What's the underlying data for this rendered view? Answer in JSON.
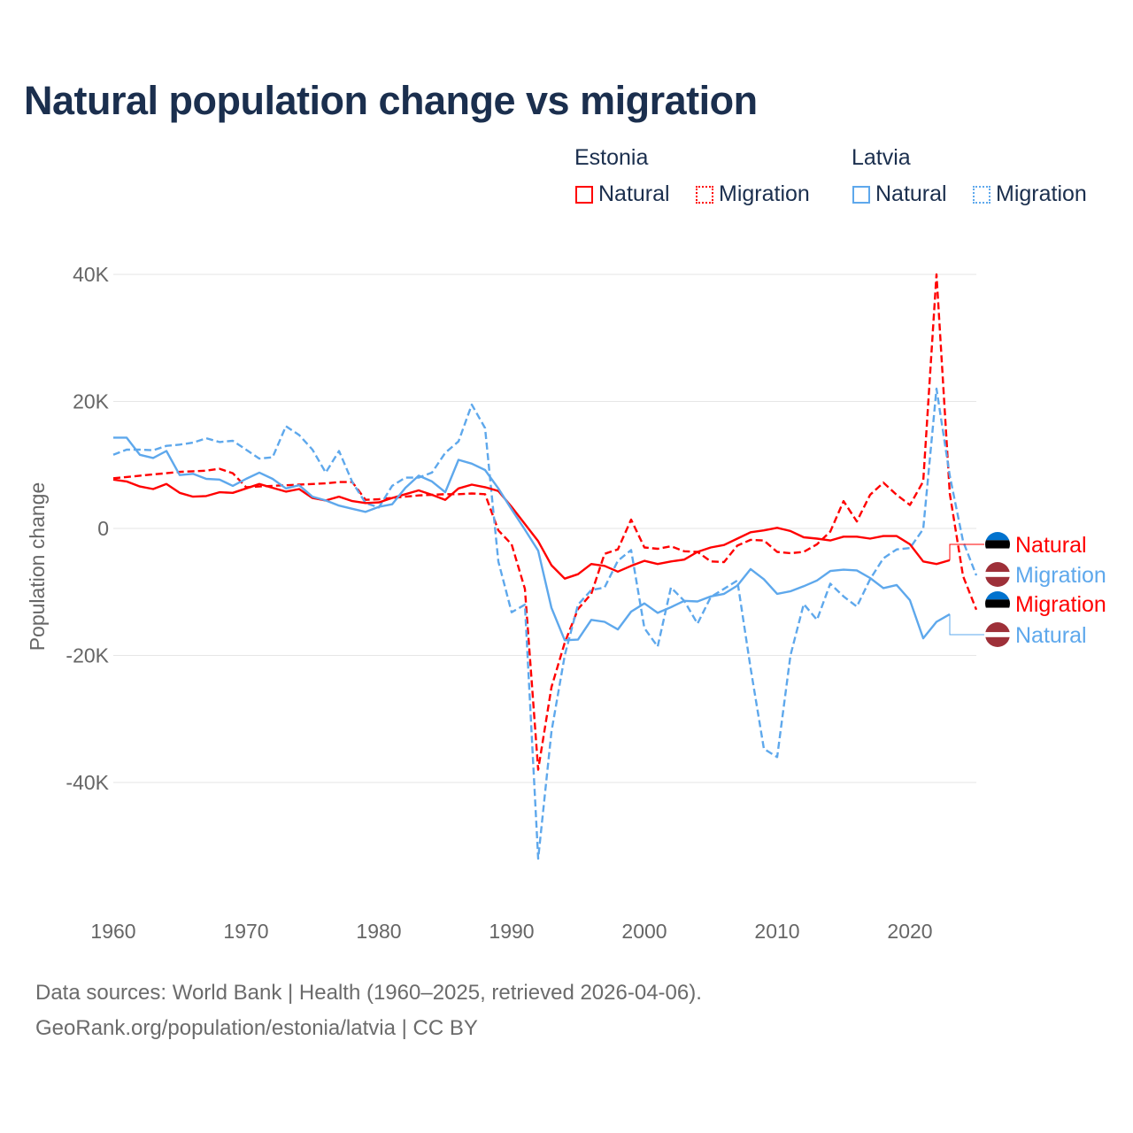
{
  "title": "Natural population change vs migration",
  "legend": {
    "groups": [
      {
        "label": "Estonia",
        "items": [
          {
            "label": "Natural",
            "style": "solid",
            "color": "#ff0000"
          },
          {
            "label": "Migration",
            "style": "dotted",
            "color": "#ff0000"
          }
        ]
      },
      {
        "label": "Latvia",
        "items": [
          {
            "label": "Natural",
            "style": "solid",
            "color": "#5ea8ec"
          },
          {
            "label": "Migration",
            "style": "dotted",
            "color": "#5ea8ec"
          }
        ]
      }
    ]
  },
  "footer": {
    "line1": "Data sources: World Bank | Health (1960–2025, retrieved 2026-04-06).",
    "line2": "GeoRank.org/population/estonia/latvia | CC BY"
  },
  "chart_data": {
    "type": "line",
    "title": "Natural population change vs migration",
    "xlabel": "",
    "ylabel": "Population change",
    "xlim": [
      1960,
      2025
    ],
    "ylim": [
      -55000,
      42000
    ],
    "x_ticks": [
      1960,
      1970,
      1980,
      1990,
      2000,
      2010,
      2020
    ],
    "x_tick_labels": [
      "1960",
      "1970",
      "1980",
      "1990",
      "2000",
      "2010",
      "2020"
    ],
    "y_ticks": [
      40000,
      20000,
      0,
      -20000,
      -40000
    ],
    "y_tick_labels": [
      "40K",
      "20K",
      "0",
      "-20K",
      "-40K"
    ],
    "grid": true,
    "legend_position": "top-right",
    "series": [
      {
        "name": "Estonia Natural",
        "end_label": "Natural",
        "country": "Estonia",
        "color": "#ff0000",
        "dash": false,
        "start": 1960,
        "values": [
          7700,
          7400,
          6600,
          6200,
          7000,
          5600,
          5000,
          5100,
          5700,
          5600,
          6300,
          7000,
          6400,
          5800,
          6200,
          4800,
          4400,
          5000,
          4300,
          4000,
          4100,
          4800,
          5400,
          6000,
          5300,
          4500,
          6300,
          6900,
          6500,
          5900,
          3400,
          700,
          -2000,
          -5800,
          -7900,
          -7200,
          -5600,
          -5900,
          -6800,
          -5900,
          -5100,
          -5600,
          -5200,
          -4900,
          -3700,
          -3000,
          -2600,
          -1600,
          -600,
          -300,
          100,
          -400,
          -1400,
          -1600,
          -1900,
          -1300,
          -1300,
          -1600,
          -1200,
          -1200,
          -2500,
          -5200,
          -5600,
          -5000
        ]
      },
      {
        "name": "Latvia Migration",
        "end_label": "Migration",
        "country": "Latvia",
        "color": "#5ea8ec",
        "dash": true,
        "start": 1960,
        "values": [
          11600,
          12400,
          12400,
          12300,
          13000,
          13200,
          13500,
          14200,
          13600,
          13800,
          12400,
          11000,
          11200,
          16100,
          14700,
          12400,
          8800,
          12200,
          7300,
          4000,
          3300,
          6700,
          8000,
          8000,
          8800,
          11900,
          13700,
          19500,
          15800,
          -5200,
          -13200,
          -12000,
          -52000,
          -32000,
          -20000,
          -12000,
          -9700,
          -9300,
          -5100,
          -3400,
          -15700,
          -18600,
          -9300,
          -11400,
          -15000,
          -10800,
          -9500,
          -8200,
          -22000,
          -34700,
          -36000,
          -20000,
          -11900,
          -14400,
          -8700,
          -10700,
          -12300,
          -8000,
          -4700,
          -3300,
          -3100,
          -100,
          22000,
          8300,
          -2000,
          -7400
        ]
      },
      {
        "name": "Estonia Migration",
        "end_label": "Migration",
        "country": "Estonia",
        "color": "#ff0000",
        "dash": true,
        "start": 1960,
        "values": [
          7900,
          8100,
          8300,
          8500,
          8700,
          8900,
          9000,
          9100,
          9400,
          8700,
          6500,
          6600,
          6700,
          6800,
          6900,
          7000,
          7100,
          7300,
          7300,
          4500,
          4600,
          4800,
          5000,
          5200,
          5300,
          5400,
          5400,
          5500,
          5400,
          -300,
          -2500,
          -9500,
          -38000,
          -25000,
          -18000,
          -12700,
          -10300,
          -4000,
          -3300,
          1400,
          -3000,
          -3200,
          -2800,
          -3600,
          -3700,
          -5200,
          -5300,
          -2700,
          -1800,
          -1900,
          -3700,
          -3900,
          -3700,
          -2500,
          -500,
          4300,
          1100,
          5300,
          7200,
          5300,
          3700,
          7400,
          40000,
          5500,
          -7500,
          -12800
        ]
      },
      {
        "name": "Latvia Natural",
        "end_label": "Natural",
        "country": "Latvia",
        "color": "#5ea8ec",
        "dash": false,
        "start": 1960,
        "values": [
          14300,
          14300,
          11600,
          11100,
          12200,
          8400,
          8600,
          7800,
          7700,
          6700,
          7800,
          8800,
          7800,
          6300,
          6800,
          5000,
          4400,
          3600,
          3100,
          2600,
          3400,
          3800,
          6400,
          8300,
          7400,
          5700,
          10800,
          10200,
          9200,
          6300,
          3000,
          -200,
          -3500,
          -12500,
          -17600,
          -17500,
          -14400,
          -14700,
          -15900,
          -13100,
          -11800,
          -13300,
          -12400,
          -11400,
          -11500,
          -10700,
          -10300,
          -9000,
          -6400,
          -8000,
          -10300,
          -9900,
          -9100,
          -8200,
          -6700,
          -6500,
          -6600,
          -7800,
          -9400,
          -8900,
          -11300,
          -17300,
          -14700,
          -13500
        ]
      }
    ]
  }
}
